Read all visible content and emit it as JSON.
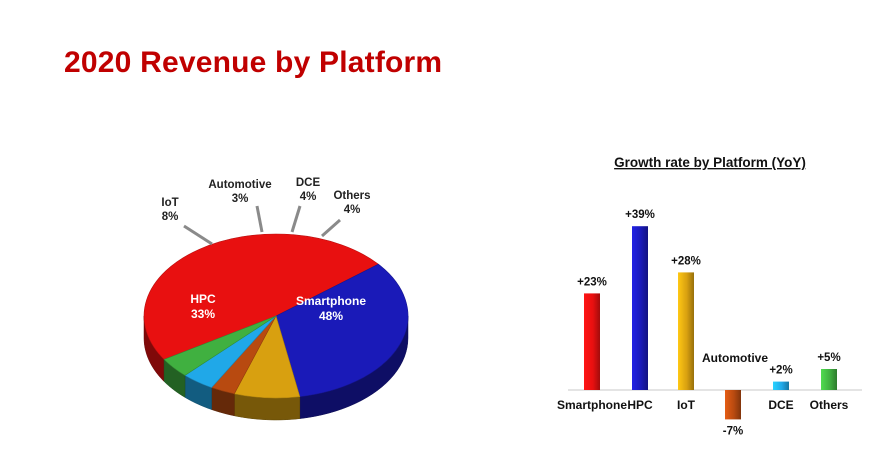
{
  "title": "2020 Revenue by Platform",
  "colors": {
    "title": "#c00000",
    "Smartphone": "#e81010",
    "HPC": "#1a1ab8",
    "IoT": "#d8a010",
    "Automotive": "#b84a10",
    "DCE": "#20a8e8",
    "Others": "#40b040"
  },
  "chart_data": [
    {
      "type": "pie",
      "categories": [
        "Smartphone",
        "HPC",
        "IoT",
        "Automotive",
        "DCE",
        "Others"
      ],
      "values": [
        48,
        33,
        8,
        3,
        4,
        4
      ],
      "labels": [
        "48%",
        "33%",
        "8%",
        "3%",
        "4%",
        "4%"
      ],
      "label_placement": {
        "Smartphone": "inside",
        "HPC": "inside",
        "IoT": "outside",
        "Automotive": "outside",
        "DCE": "outside",
        "Others": "outside"
      }
    },
    {
      "type": "bar",
      "title": "Growth rate by Platform (YoY)",
      "categories": [
        "Smartphone",
        "HPC",
        "IoT",
        "Automotive",
        "DCE",
        "Others"
      ],
      "values": [
        23,
        39,
        28,
        -7,
        2,
        5
      ],
      "labels": [
        "+23%",
        "+39%",
        "+28%",
        "-7%",
        "+2%",
        "+5%"
      ],
      "category_label_names": [
        "Smartphone",
        "HPC",
        "IoT",
        "Automotive",
        "DCE",
        "Others"
      ],
      "ylim": [
        -10,
        42
      ]
    }
  ]
}
